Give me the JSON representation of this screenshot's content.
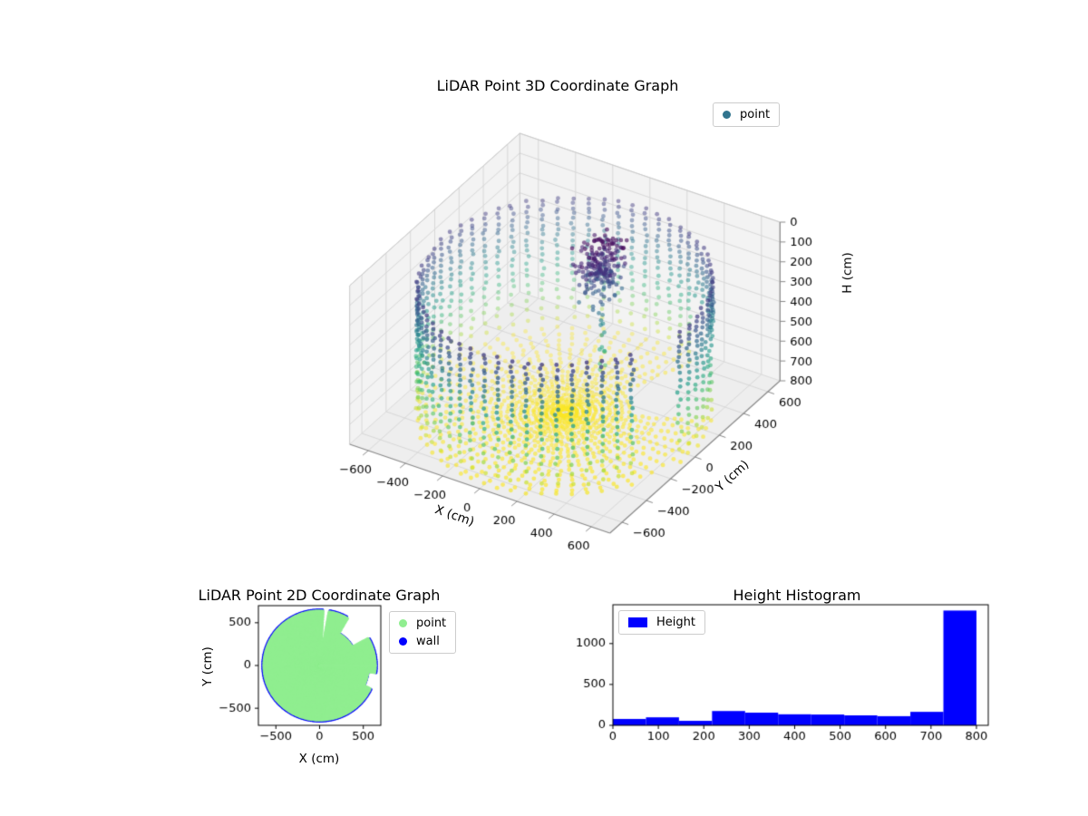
{
  "chart_data": [
    {
      "id": "lidar-3d-scatter",
      "type": "scatter",
      "projection": "3d",
      "title": "LiDAR Point 3D Coordinate Graph",
      "xlabel": "X (cm)",
      "ylabel": "Y (cm)",
      "zlabel": "H (cm)",
      "xlim": [
        -700,
        700
      ],
      "ylim": [
        -700,
        700
      ],
      "zlim": [
        0,
        800
      ],
      "zaxis_inverted": true,
      "xticks": [
        -600,
        -400,
        -200,
        0,
        200,
        400,
        600
      ],
      "yticks": [
        -600,
        -400,
        -200,
        0,
        200,
        400,
        600
      ],
      "zticks": [
        0,
        100,
        200,
        300,
        400,
        500,
        600,
        700,
        800
      ],
      "grid": true,
      "legend": [
        {
          "label": "point",
          "color": "#31748e"
        }
      ],
      "colormap": "viridis",
      "color_by": "H (cm)",
      "scene": {
        "description": "Cylindrical room scanned by a ceiling LiDAR: wall rings color-graded from dark blue (low H) to yellow (H=800), radial floor-spoke points at H=800, dense dark object cluster near sensor with vertical trail, vertical gap in front-right wall and shadow sector behind object",
        "wall_radius_cm": 665,
        "floor_h_cm": 800,
        "beam_azimuth_step_deg": 6,
        "beam_elev_min_deg": 12,
        "beam_elev_max_deg": 88,
        "beam_elev_step_deg": 2,
        "wall_gap_sector_deg": [
          -25,
          -8
        ],
        "object_shadow_sector_deg": [
          30,
          60
        ],
        "object_shadow_wall_min_h_cm": 430,
        "object_shadow_floor_min_r_cm": 300,
        "object_cluster": {
          "x_cm": 90,
          "y_cm": 160,
          "h_cm": 120,
          "sx_cm": 50,
          "sy_cm": 60,
          "sh_cm": 70,
          "points": 210
        },
        "object_trail": {
          "x_cm": 140,
          "y_cm": 100,
          "h_from_cm": 250,
          "h_to_cm": 600,
          "points": 16
        }
      }
    },
    {
      "id": "lidar-2d-scatter",
      "type": "scatter",
      "title": "LiDAR Point 2D Coordinate Graph",
      "xlabel": "X (cm)",
      "ylabel": "Y (cm)",
      "xlim": [
        -700,
        700
      ],
      "ylim": [
        -700,
        700
      ],
      "xticks": [
        -500,
        0,
        500
      ],
      "yticks": [
        -500,
        0,
        500
      ],
      "legend": [
        {
          "label": "point",
          "color": "#90ee90"
        },
        {
          "label": "wall",
          "color": "#0000ff"
        }
      ],
      "disk_radius_cm": 645,
      "notches": [
        {
          "from_deg": 30,
          "to_deg": 60,
          "radius_cm": 430
        },
        {
          "from_deg": -25,
          "to_deg": -8,
          "radius_cm": 555
        },
        {
          "from_deg": 80,
          "to_deg": 86,
          "radius_cm": 260
        }
      ]
    },
    {
      "id": "height-histogram",
      "type": "bar",
      "title": "Height Histogram",
      "legend": [
        {
          "label": "Height",
          "color": "#0000ff"
        }
      ],
      "bar_color": "#0000ff",
      "bin_start": 0,
      "bin_end": 800,
      "bin_count": 11,
      "values": [
        78,
        98,
        55,
        175,
        155,
        135,
        132,
        122,
        112,
        165,
        1404
      ],
      "xticks": [
        0,
        100,
        200,
        300,
        400,
        500,
        600,
        700,
        800
      ],
      "yticks": [
        0,
        500,
        1000
      ],
      "xlim": [
        0,
        826
      ],
      "ylim": [
        0,
        1475
      ]
    }
  ]
}
